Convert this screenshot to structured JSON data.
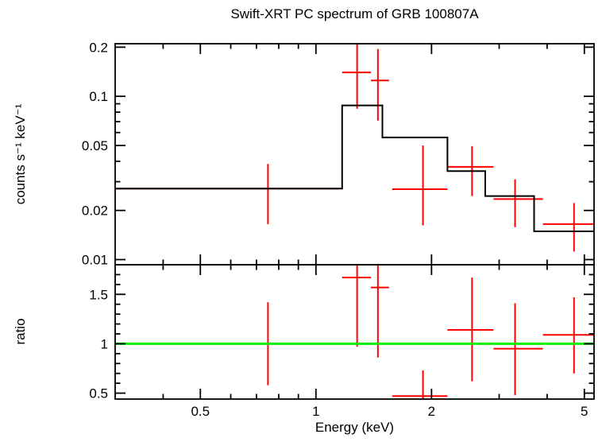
{
  "title": "Swift-XRT PC spectrum of GRB 100807A",
  "colors": {
    "data": "#ff0000",
    "model": "#000000",
    "reference_line": "#00ee00",
    "frame": "#000000",
    "background": "#ffffff"
  },
  "xaxis": {
    "label": "Energy (keV)",
    "scale": "log",
    "lim": [
      0.3,
      5.3
    ],
    "ticks": [
      {
        "v": 0.5,
        "label": "0.5"
      },
      {
        "v": 1,
        "label": "1"
      },
      {
        "v": 2,
        "label": "2"
      },
      {
        "v": 5,
        "label": "5"
      }
    ],
    "minor_ticks": [
      0.4,
      0.6,
      0.7,
      0.8,
      0.9,
      3,
      4
    ]
  },
  "chart_data": [
    {
      "type": "scatter",
      "name": "spectrum",
      "ylabel": "counts s⁻¹ keV⁻¹",
      "xscale": "log",
      "yscale": "log",
      "ylim": [
        0.0093,
        0.21
      ],
      "yticks": [
        {
          "v": 0.01,
          "label": "0.01"
        },
        {
          "v": 0.02,
          "label": "0.02"
        },
        {
          "v": 0.05,
          "label": "0.05"
        },
        {
          "v": 0.1,
          "label": "0.1"
        },
        {
          "v": 0.2,
          "label": "0.2"
        }
      ],
      "yminor_ticks": [
        0.03,
        0.04,
        0.06,
        0.07,
        0.08,
        0.09
      ],
      "points": [
        {
          "x": 0.75,
          "xlo": 0.3,
          "xhi": 1.15,
          "y": 0.0272,
          "ylo": 0.0165,
          "yhi": 0.0385
        },
        {
          "x": 1.28,
          "xlo": 1.17,
          "xhi": 1.39,
          "y": 0.14,
          "ylo": 0.084,
          "yhi": 0.23
        },
        {
          "x": 1.45,
          "xlo": 1.39,
          "xhi": 1.55,
          "y": 0.125,
          "ylo": 0.071,
          "yhi": 0.195
        },
        {
          "x": 1.9,
          "xlo": 1.58,
          "xhi": 2.2,
          "y": 0.027,
          "ylo": 0.0162,
          "yhi": 0.05
        },
        {
          "x": 2.55,
          "xlo": 2.2,
          "xhi": 2.9,
          "y": 0.037,
          "ylo": 0.0245,
          "yhi": 0.0495
        },
        {
          "x": 3.3,
          "xlo": 2.9,
          "xhi": 3.9,
          "y": 0.0235,
          "ylo": 0.0158,
          "yhi": 0.031
        },
        {
          "x": 4.7,
          "xlo": 3.9,
          "xhi": 5.5,
          "y": 0.0165,
          "ylo": 0.0112,
          "yhi": 0.0222
        }
      ],
      "model_steps": [
        {
          "x0": 0.3,
          "x1": 1.17,
          "y": 0.0272
        },
        {
          "x0": 1.17,
          "x1": 1.49,
          "y": 0.088
        },
        {
          "x0": 1.49,
          "x1": 2.2,
          "y": 0.056
        },
        {
          "x0": 2.2,
          "x1": 2.76,
          "y": 0.0348
        },
        {
          "x0": 2.76,
          "x1": 3.7,
          "y": 0.0245
        },
        {
          "x0": 3.7,
          "x1": 5.5,
          "y": 0.0149
        }
      ]
    },
    {
      "type": "scatter",
      "name": "ratio",
      "ylabel": "ratio",
      "xscale": "log",
      "yscale": "linear",
      "ylim": [
        0.44,
        1.8
      ],
      "yticks": [
        {
          "v": 0.5,
          "label": "0.5"
        },
        {
          "v": 1,
          "label": "1"
        },
        {
          "v": 1.5,
          "label": "1.5"
        }
      ],
      "yminor_ticks": [
        0.6,
        0.7,
        0.8,
        0.9,
        1.1,
        1.2,
        1.3,
        1.4,
        1.6,
        1.7
      ],
      "reference_line": 1.0,
      "points": [
        {
          "x": 0.75,
          "xlo": 0.3,
          "xhi": 1.15,
          "y": 1.0,
          "ylo": 0.58,
          "yhi": 1.42
        },
        {
          "x": 1.28,
          "xlo": 1.17,
          "xhi": 1.39,
          "y": 1.67,
          "ylo": 0.97,
          "yhi": 2.0
        },
        {
          "x": 1.45,
          "xlo": 1.39,
          "xhi": 1.55,
          "y": 1.57,
          "ylo": 0.86,
          "yhi": 2.0
        },
        {
          "x": 1.9,
          "xlo": 1.58,
          "xhi": 2.2,
          "y": 0.47,
          "ylo": 0.1,
          "yhi": 0.73
        },
        {
          "x": 2.55,
          "xlo": 2.2,
          "xhi": 2.9,
          "y": 1.14,
          "ylo": 0.62,
          "yhi": 1.67
        },
        {
          "x": 3.3,
          "xlo": 2.9,
          "xhi": 3.9,
          "y": 0.95,
          "ylo": 0.48,
          "yhi": 1.41
        },
        {
          "x": 4.7,
          "xlo": 3.9,
          "xhi": 5.5,
          "y": 1.09,
          "ylo": 0.7,
          "yhi": 1.47
        }
      ]
    }
  ]
}
